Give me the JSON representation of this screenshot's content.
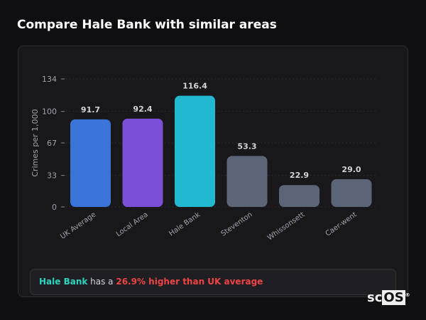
{
  "header": {
    "title": "Compare Hale Bank with similar areas"
  },
  "chart_data": {
    "type": "bar",
    "ylabel": "Crimes per 1,000",
    "xlabel": "",
    "ylim": [
      0,
      134
    ],
    "yticks": [
      0,
      33,
      67,
      100,
      134
    ],
    "grid": true,
    "categories": [
      "UK Average",
      "Local Area",
      "Hale Bank",
      "Steventon",
      "Whissonsett",
      "Caer-went"
    ],
    "values": [
      91.7,
      92.4,
      116.4,
      53.3,
      22.9,
      29.0
    ],
    "value_labels": [
      "91.7",
      "92.4",
      "116.4",
      "53.3",
      "22.9",
      "29.0"
    ],
    "colors": [
      "#3b74d9",
      "#7b4fd6",
      "#22b8cf",
      "#5c6478",
      "#5c6478",
      "#5c6478"
    ]
  },
  "footer": {
    "area": "Hale Bank",
    "text": " has a ",
    "highlight": "26.9% higher than UK average"
  },
  "logo": {
    "text_a": "sc",
    "text_b": "OS",
    "mark": "®"
  }
}
